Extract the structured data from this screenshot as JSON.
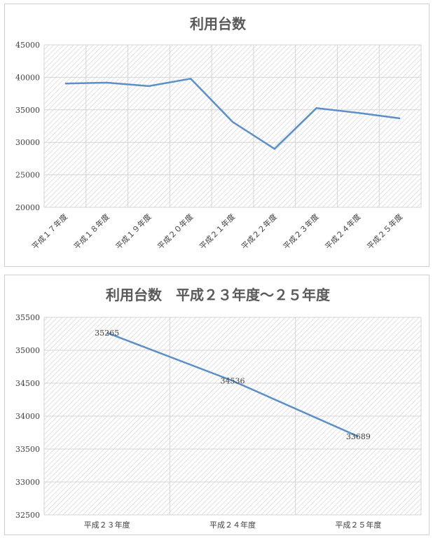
{
  "chart_data": [
    {
      "type": "line",
      "title": "利用台数",
      "categories": [
        "平成１７年度",
        "平成１８年度",
        "平成１９年度",
        "平成２０年度",
        "平成２１年度",
        "平成２２年度",
        "平成２３年度",
        "平成２４年度",
        "平成２５年度"
      ],
      "series": [
        {
          "values": [
            39050,
            39180,
            38650,
            39800,
            33150,
            29000,
            35265,
            34536,
            33689
          ]
        }
      ],
      "ylim": [
        20000,
        45000
      ],
      "yticks": [
        20000,
        25000,
        30000,
        35000,
        40000,
        45000
      ],
      "grid": true,
      "line_color": "#5b8fc7"
    },
    {
      "type": "line",
      "title": "利用台数　平成２３年度～２５年度",
      "categories": [
        "平成２３年度",
        "平成２４年度",
        "平成２５年度"
      ],
      "series": [
        {
          "values": [
            35265,
            34536,
            33689
          ],
          "data_labels": [
            "35265",
            "34536",
            "33689"
          ]
        }
      ],
      "ylim": [
        32500,
        35500
      ],
      "yticks": [
        32500,
        33000,
        33500,
        34000,
        34500,
        35000,
        35500
      ],
      "grid": true,
      "line_color": "#5b8fc7"
    }
  ]
}
